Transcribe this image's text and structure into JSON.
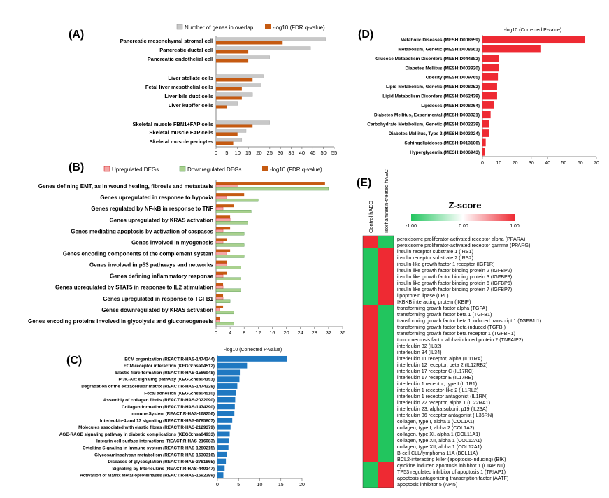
{
  "colors": {
    "gray_bar": "#c8c8c8",
    "orange_bar": "#c55a11",
    "pink_bar": "#f4a6a6",
    "green_bar": "#a9d18e",
    "blue_bar": "#1f78c1",
    "heat_red": "#ee2a33",
    "heat_green": "#22c55e",
    "heat_white": "#ffffff"
  },
  "chart_data": [
    {
      "panel": "(A)",
      "type": "bar",
      "orientation": "horizontal",
      "legend_position": "top",
      "categories": [
        "Pancreatic mesenchymal stromal cell",
        "Pancreatic ductal cell",
        "Pancreatic endothelial cell",
        "Liver stellate cells",
        "Fetal liver mesothelial cells",
        "Liver bile duct cells",
        "Liver kupffer cells",
        "Skeletal muscle FBN1+FAP cells",
        "Skeletal muscle FAP cells",
        "Skeletal muscle pericytes"
      ],
      "series": [
        {
          "name": "Number of genes in overlap",
          "values": [
            51,
            44,
            25,
            22,
            21,
            17,
            10,
            25,
            14,
            12
          ]
        },
        {
          "name": "-log10 (FDR q-value)",
          "values": [
            31,
            15,
            15,
            17,
            12,
            12,
            5,
            17,
            10,
            8
          ]
        }
      ],
      "xlim": [
        0,
        55
      ],
      "xticks": [
        "0",
        "5",
        "10",
        "15",
        "20",
        "25",
        "30",
        "35",
        "40",
        "45",
        "50",
        "55"
      ]
    },
    {
      "panel": "(B)",
      "type": "bar",
      "orientation": "horizontal",
      "legend_position": "top",
      "categories": [
        "Genes defining EMT, as in wound healing, fibrosis and metastasis",
        "Genes upregulated in response to hypoxia",
        "Genes regulated by NF-kB in response to TNF",
        "Genes upregulated by KRAS activation",
        "Genes mediating apoptosis by activation of caspases",
        "Genes involved in myogenesis",
        "Genes encoding components of the complement system",
        "Genes involved in p53 pathways and networks",
        "Genes defining inflammatory response",
        "Genes upregulated by STAT5 in response to IL2 stimulation",
        "Genes upregulated in response to TGFB1",
        "Genes downregulated by KRAS activation",
        "Genes encoding proteins involved in glycolysis and gluconeogenesis"
      ],
      "series": [
        {
          "name": "Upregulated DEGs",
          "values": [
            6,
            3,
            2,
            4,
            2,
            2,
            3,
            3,
            2,
            2,
            2,
            1,
            1
          ]
        },
        {
          "name": "Downregulated DEGs",
          "values": [
            32,
            12,
            10,
            9,
            8,
            8,
            8,
            7,
            7,
            7,
            4,
            5,
            5
          ]
        },
        {
          "name": "-log10 (FDR q-value)",
          "values": [
            31,
            8,
            5,
            4,
            4,
            3,
            4,
            3,
            3,
            2,
            2,
            2,
            1
          ]
        }
      ],
      "xlim": [
        0,
        36
      ],
      "xticks": [
        "0",
        "4",
        "8",
        "12",
        "16",
        "20",
        "24",
        "28",
        "32",
        "36"
      ]
    },
    {
      "panel": "(C)",
      "type": "bar",
      "orientation": "horizontal",
      "title": "-log10 (Corrected P-value)",
      "categories": [
        "ECM organization (REACT:R-HAS-1474244)",
        "ECM-receptor interaction (KEGG:hsa04512)",
        "Elastic fibre formation (REACT:R-HAS-1566948)",
        "PI3K-Akt signaling pathway (KEGG:hsa04151)",
        "Degradation of the extracellular matrix (REACT:R-HAS-1474228)",
        "Focal adhesion (KEGG:hsa04510)",
        "Assembly of collagen fibrils (REACT:R-HAS-2022090)",
        "Collagen formation (REACT:R-HAS-1474290)",
        "Immune System (REACT:R-HAS-168256)",
        "Interleukin-4 and 13 signaling (REACT:R-HAS-6785807)",
        "Molecules associated with elastic fibres (REACT:R-HAS-2129379)",
        "AGE-RAGE signaling pathway in diabetic complications (KEGG:hsa04933)",
        "Integrin cell surface interactions (REACT:R-HAS-216083)",
        "Cytokine Signaling in Immune system (REACT:R-HAS-1280215)",
        "Glycosaminoglycan metabolism (REACT:R-HAS-1630316)",
        "Diseases of glycosylation (REACT:R-HAS-3781865)",
        "Signaling by Interleukins (REACT:R-HAS-449147)",
        "Activation of Matrix Metalloproteinases (REACT:R-HAS-1592389)"
      ],
      "values": [
        16.5,
        7,
        5.3,
        5.2,
        4.7,
        4.4,
        4.2,
        4.1,
        4.0,
        3.5,
        3.1,
        2.9,
        2.7,
        2.6,
        2.3,
        2.0,
        1.7,
        1.4
      ],
      "xlim": [
        0,
        20
      ],
      "xticks": [
        "0",
        "5",
        "10",
        "15",
        "20"
      ]
    },
    {
      "panel": "(D)",
      "type": "bar",
      "orientation": "horizontal",
      "title": "-log10 (Corrected P-value)",
      "categories": [
        "Metabolic Diseases (MESH:D008659)",
        "Metabolism, Genetic (MESH:D008661)",
        "Glucose Metabolism Disorders (MESH:D044882)",
        "Diabetes Mellitus (MESH:D003920)",
        "Obesity (MESH:D009765)",
        "Lipid Metabolism, Genetic (MESH:D008052)",
        "Lipid Metabolism Disorders (MESH:D052439)",
        "Lipidoses (MESH:D008064)",
        "Diabetes Mellitus, Experimental (MESH:D003921)",
        "Carbohydrate Metabolism, Genetic (MESH:D002239)",
        "Diabetes Mellitus, Type 2 (MESH:D003924)",
        "Sphingolipidoses (MESH:D013106)",
        "Hyperglycemia (MESH:D006943)"
      ],
      "values": [
        63,
        36,
        10,
        10,
        9.5,
        9,
        9,
        7,
        5,
        4,
        4,
        2,
        1.5
      ],
      "xlim": [
        0,
        70
      ],
      "xticks": [
        "0",
        "10",
        "20",
        "30",
        "40",
        "50",
        "60",
        "70"
      ]
    },
    {
      "panel": "(E)",
      "type": "heatmap",
      "title": "Z-score",
      "colorbar_ticks": [
        "-1.00",
        "0.00",
        "1.00"
      ],
      "columns": [
        "Control hAEC",
        "Isorhamnetin-treated hAEC"
      ],
      "rows": [
        "peroxisome proliferator-activated receptor alpha (PPARA)",
        "peroxisome proliferator-activated receptor gamma (PPARG)",
        "insulin receptor substrate 1 (IRS1)",
        "insulin receptor substrate 2 (IRS2)",
        "insulin-like growth factor 1 receptor (IGF1R)",
        "insulin like growth factor binding protein 2 (IGFBP2)",
        "insulin like growth factor binding protein 3 (IGFBP3)",
        "insulin like growth factor binding protein 6 (IGFBP6)",
        "insulin like growth factor binding protein 7 (IGFBP7)",
        "lipoprotein lipase (LPL)",
        "IKBKB interacting protein (IKBIP)",
        "transforming growth factor alpha (TGFA)",
        "transforming growth factor beta 1 (TGFB1)",
        "transforming growth factor beta 1 induced transcript 1 (TGFB1I1)",
        "transforming growth factor beta-induced (TGFBI)",
        "transforming growth factor beta receptor 1 (TGFBR1)",
        "tumor necrosis factor alpha-induced protein 2 (TNFAIP2)",
        "interleukin 32 (IL32)",
        "interleukin 34 (IL34)",
        "interleukin 11 receptor, alpha (IL11RA)",
        "interleukin 12 receptor, beta 2 (IL12RB2)",
        "interleukin 17 receptor C (IL17RC)",
        "interleukin 17 receptor E (IL17RE)",
        "interleukin 1 receptor, type I (IL1R1)",
        "interleukin 1 receptor-like 2 (IL1RL2)",
        "interleukin 1 receptor antagonist (IL1RN)",
        "interleukin 22 receptor, alpha 1 (IL22RA1)",
        "interleukin 23, alpha subunit p19 (IL23A)",
        "interleukin 36 receptor antagonist (IL36RN)",
        "collagen, type I, alpha 1 (COL1A1)",
        "collagen, type I, alpha 2 (COL1A2)",
        "collagen, type XI, alpha 1 (COL11A1)",
        "collagen, type XII, alpha 1 (COL12A1)",
        "collagen, type XII, alpha 1 (COL12A1)",
        "B-cell CLL/lymphoma 11A (BCL11A)",
        "BCL2-interacting killer (apoptosis-inducing) (BIK)",
        "cytokine induced apoptosis inhibitor 1 (CIAPIN1)",
        "TP53 regulated inhibitor of apoptosis 1 (TRIAP1)",
        "apoptosis antagonizing transcription factor (AATF)",
        "apoptosis inhibitor 5 (API5)"
      ],
      "values_control": [
        1,
        1,
        -1,
        -1,
        -1,
        -1,
        -1,
        -1,
        -1,
        -1,
        -1,
        1,
        1,
        1,
        1,
        1,
        1,
        1,
        1,
        1,
        1,
        1,
        1,
        1,
        1,
        1,
        1,
        1,
        1,
        1,
        1,
        1,
        1,
        1,
        1,
        1,
        -1,
        -1,
        -1,
        -1
      ],
      "values_treated": [
        -1,
        -1,
        1,
        1,
        1,
        1,
        1,
        1,
        1,
        1,
        1,
        -1,
        -1,
        -1,
        -1,
        -1,
        -1,
        -1,
        -1,
        -1,
        -1,
        -1,
        -1,
        -1,
        -1,
        -1,
        -1,
        -1,
        -1,
        -1,
        -1,
        -1,
        -1,
        -1,
        -1,
        -1,
        1,
        1,
        1,
        1
      ],
      "zlim": [
        -1,
        1
      ]
    }
  ]
}
